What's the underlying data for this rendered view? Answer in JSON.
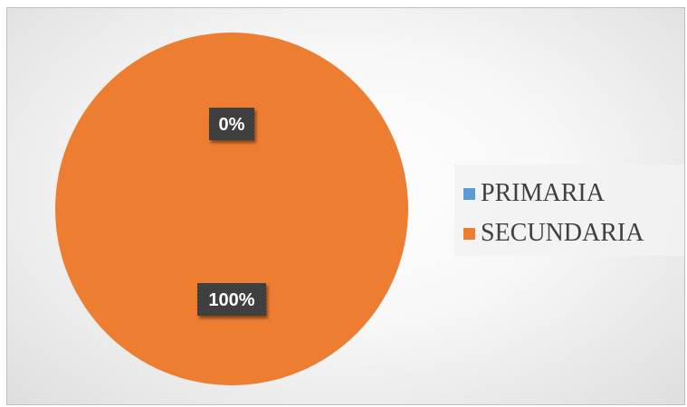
{
  "chart_data": {
    "type": "pie",
    "title": "",
    "categories": [
      "PRIMARIA",
      "SECUNDARIA"
    ],
    "values": [
      0,
      100
    ],
    "data_labels": [
      "0%",
      "100%"
    ],
    "colors": [
      "#5b9bd5",
      "#ed7d31"
    ],
    "legend": {
      "placement": "right",
      "entries": [
        "PRIMARIA",
        "SECUNDARIA"
      ]
    }
  }
}
